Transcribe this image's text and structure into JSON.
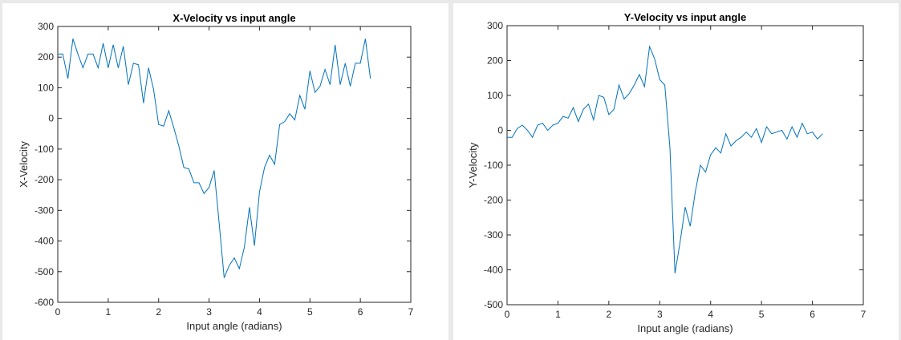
{
  "chart_data": [
    {
      "type": "line",
      "title": "X-Velocity vs input angle",
      "xlabel": "Input angle (radians)",
      "ylabel": "X-Velocity",
      "xlim": [
        0,
        7
      ],
      "ylim": [
        -600,
        300
      ],
      "xticks": [
        0,
        1,
        2,
        3,
        4,
        5,
        6,
        7
      ],
      "yticks": [
        300,
        200,
        100,
        0,
        -100,
        -200,
        -300,
        -400,
        -500,
        -600
      ],
      "grid": false,
      "color": "#0072bd",
      "series": [
        {
          "x": [
            0,
            0.1,
            0.2,
            0.3,
            0.4,
            0.5,
            0.6,
            0.7,
            0.8,
            0.9,
            1.0,
            1.1,
            1.2,
            1.3,
            1.4,
            1.5,
            1.6,
            1.7,
            1.8,
            1.9,
            2.0,
            2.1,
            2.2,
            2.3,
            2.4,
            2.5,
            2.6,
            2.7,
            2.8,
            2.9,
            3.0,
            3.1,
            3.2,
            3.3,
            3.4,
            3.5,
            3.6,
            3.7,
            3.8,
            3.9,
            4.0,
            4.1,
            4.2,
            4.3,
            4.4,
            4.5,
            4.6,
            4.7,
            4.8,
            4.9,
            5.0,
            5.1,
            5.2,
            5.3,
            5.4,
            5.5,
            5.6,
            5.7,
            5.8,
            5.9,
            6.0,
            6.1,
            6.2
          ],
          "y": [
            210,
            210,
            130,
            260,
            210,
            165,
            210,
            210,
            165,
            245,
            165,
            240,
            165,
            235,
            110,
            180,
            175,
            50,
            165,
            95,
            -20,
            -25,
            25,
            -30,
            -90,
            -160,
            -165,
            -210,
            -210,
            -245,
            -225,
            -170,
            -340,
            -520,
            -480,
            -455,
            -490,
            -420,
            -290,
            -415,
            -240,
            -160,
            -120,
            -150,
            -20,
            -10,
            15,
            -5,
            75,
            30,
            155,
            85,
            105,
            160,
            110,
            240,
            110,
            180,
            105,
            180,
            180,
            260,
            130
          ]
        }
      ]
    },
    {
      "type": "line",
      "title": "Y-Velocity vs input angle",
      "xlabel": "Input angle (radians)",
      "ylabel": "Y-Velocity",
      "xlim": [
        0,
        7
      ],
      "ylim": [
        -500,
        300
      ],
      "xticks": [
        0,
        1,
        2,
        3,
        4,
        5,
        6,
        7
      ],
      "yticks": [
        300,
        200,
        100,
        0,
        -100,
        -200,
        -300,
        -400,
        -500
      ],
      "grid": false,
      "color": "#0072bd",
      "series": [
        {
          "x": [
            0,
            0.1,
            0.2,
            0.3,
            0.4,
            0.5,
            0.6,
            0.7,
            0.8,
            0.9,
            1.0,
            1.1,
            1.2,
            1.3,
            1.4,
            1.5,
            1.6,
            1.7,
            1.8,
            1.9,
            2.0,
            2.1,
            2.2,
            2.3,
            2.4,
            2.5,
            2.6,
            2.7,
            2.8,
            2.9,
            3.0,
            3.1,
            3.2,
            3.3,
            3.4,
            3.5,
            3.6,
            3.7,
            3.8,
            3.9,
            4.0,
            4.1,
            4.2,
            4.3,
            4.4,
            4.5,
            4.6,
            4.7,
            4.8,
            4.9,
            5.0,
            5.1,
            5.2,
            5.3,
            5.4,
            5.5,
            5.6,
            5.7,
            5.8,
            5.9,
            6.0,
            6.1,
            6.2
          ],
          "y": [
            -20,
            -20,
            5,
            15,
            0,
            -20,
            15,
            20,
            0,
            15,
            20,
            40,
            35,
            65,
            25,
            60,
            75,
            30,
            100,
            95,
            45,
            60,
            130,
            90,
            105,
            130,
            160,
            125,
            240,
            205,
            145,
            130,
            -50,
            -410,
            -320,
            -220,
            -275,
            -175,
            -100,
            -120,
            -70,
            -50,
            -65,
            -10,
            -45,
            -30,
            -20,
            -5,
            -20,
            5,
            -35,
            10,
            -10,
            -5,
            0,
            -25,
            10,
            -20,
            20,
            -10,
            -5,
            -25,
            -10
          ]
        }
      ]
    }
  ]
}
